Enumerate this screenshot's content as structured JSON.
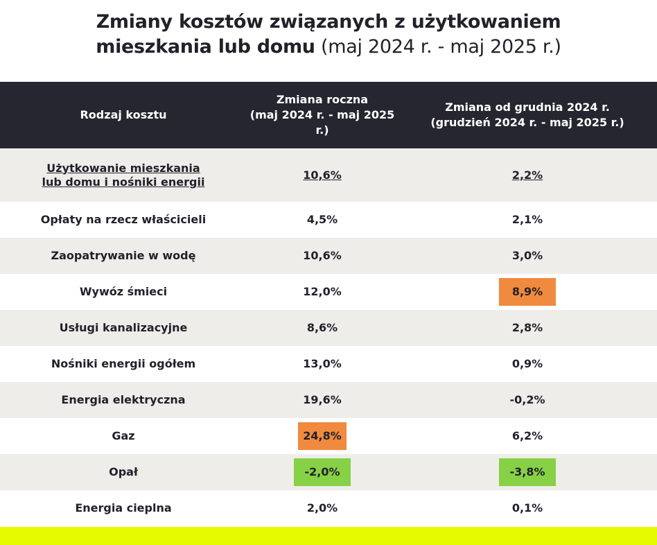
{
  "title": {
    "bold_line1": "Zmiany kosztów związanych z użytkowaniem",
    "bold_line2": "mieszkania lub domu",
    "light_line2": " (maj 2024 r. - maj 2025 r.)"
  },
  "table": {
    "headers": {
      "col1": "Rodzaj kosztu",
      "col2_line1": "Zmiana roczna",
      "col2_line2": "(maj 2024 r. - maj 2025 r.)",
      "col3_line1": "Zmiana od grudnia 2024 r.",
      "col3_line2": "(grudzień 2024 r. - maj 2025 r.)"
    },
    "rows": [
      {
        "name_line1": "Użytkowanie mieszkania",
        "name_line2": "lub domu i nośniki energii",
        "annual": "10,6%",
        "since_dec": "2,2%"
      },
      {
        "name": "Opłaty na rzecz właścicieli",
        "annual": "4,5%",
        "since_dec": "2,1%"
      },
      {
        "name": "Zaopatrywanie w wodę",
        "annual": "10,6%",
        "since_dec": "3,0%"
      },
      {
        "name": "Wywóz śmieci",
        "annual": "12,0%",
        "since_dec": "8,9%",
        "since_dec_highlight": "orange"
      },
      {
        "name": "Usługi kanalizacyjne",
        "annual": "8,6%",
        "since_dec": "2,8%"
      },
      {
        "name": "Nośniki energii ogółem",
        "annual": "13,0%",
        "since_dec": "0,9%"
      },
      {
        "name": "Energia elektryczna",
        "annual": "19,6%",
        "since_dec": "-0,2%"
      },
      {
        "name": "Gaz",
        "annual": "24,8%",
        "annual_highlight": "orange",
        "since_dec": "6,2%"
      },
      {
        "name": "Opał",
        "annual": "-2,0%",
        "annual_highlight": "green",
        "since_dec": "-3,8%",
        "since_dec_highlight": "green"
      },
      {
        "name": "Energia cieplna",
        "annual": "2,0%",
        "since_dec": "0,1%"
      }
    ]
  },
  "colors": {
    "header_bg": "#262631",
    "row_shaded": "#efedea",
    "highlight_orange": "#f08a3e",
    "highlight_green": "#86d146",
    "accent_bar": "#e6fb00"
  }
}
